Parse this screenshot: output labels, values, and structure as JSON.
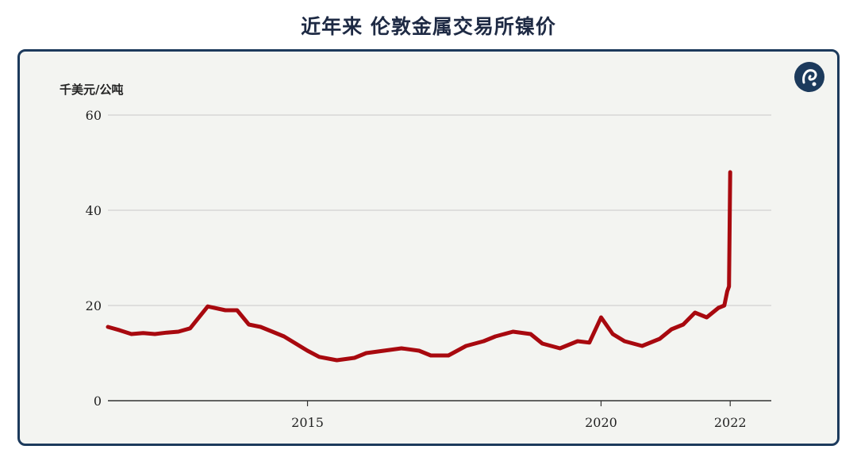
{
  "title": "近年来 伦敦金属交易所镍价",
  "chart_data": {
    "type": "line",
    "ylabel": "千美元/公吨",
    "ylim": [
      0,
      60
    ],
    "yticks": [
      0,
      20,
      40,
      60
    ],
    "xlim": [
      2011.6,
      2022.9
    ],
    "xticks": [
      {
        "value": 2015,
        "label": "2015"
      },
      {
        "value": 2020,
        "label": "2020"
      },
      {
        "value": 2022.2,
        "label": "2022"
      }
    ],
    "grid": true,
    "color": "#a8090f",
    "series": [
      {
        "x": [
          2011.6,
          2011.8,
          2012.0,
          2012.2,
          2012.4,
          2012.6,
          2012.8,
          2013.0,
          2013.3,
          2013.6,
          2013.8,
          2014.0,
          2014.2,
          2014.4,
          2014.6,
          2014.8,
          2015.0,
          2015.2,
          2015.5,
          2015.8,
          2016.0,
          2016.3,
          2016.6,
          2016.9,
          2017.1,
          2017.4,
          2017.7,
          2018.0,
          2018.2,
          2018.5,
          2018.8,
          2019.0,
          2019.3,
          2019.6,
          2019.8,
          2020.0,
          2020.2,
          2020.4,
          2020.7,
          2021.0,
          2021.2,
          2021.4,
          2021.6,
          2021.8,
          2022.0,
          2022.1,
          2022.15,
          2022.18,
          2022.2
        ],
        "y": [
          15.5,
          14.8,
          14.0,
          14.2,
          14.0,
          14.3,
          14.5,
          15.2,
          19.8,
          19.0,
          19.0,
          16.0,
          15.5,
          14.5,
          13.5,
          12.0,
          10.5,
          9.2,
          8.5,
          9.0,
          10.0,
          10.5,
          11.0,
          10.5,
          9.5,
          9.5,
          11.5,
          12.5,
          13.5,
          14.5,
          14.0,
          12.0,
          11.0,
          12.5,
          12.2,
          17.5,
          14.0,
          12.5,
          11.5,
          13.0,
          15.0,
          16.0,
          18.5,
          17.5,
          19.5,
          20.0,
          23.0,
          24.0,
          48.0
        ]
      }
    ]
  }
}
